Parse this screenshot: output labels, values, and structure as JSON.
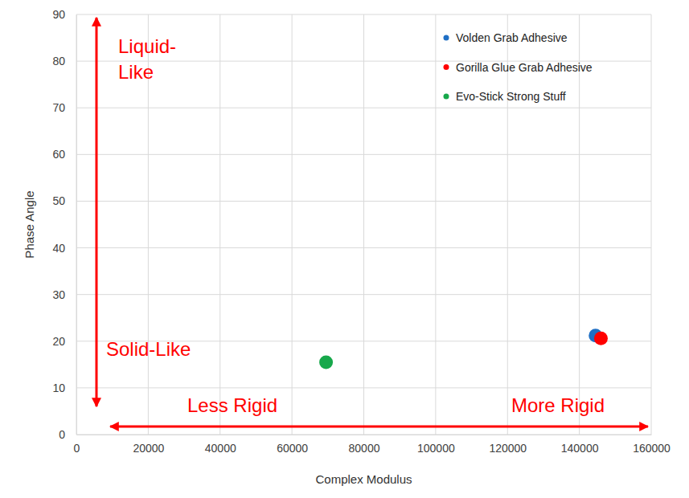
{
  "chart_data": {
    "type": "scatter",
    "x_label": "Complex Modulus",
    "y_label": "Phase Angle",
    "xlim": [
      0,
      160000
    ],
    "xticks": [
      0,
      20000,
      40000,
      60000,
      80000,
      100000,
      120000,
      140000,
      160000
    ],
    "ylim": [
      0,
      90
    ],
    "yticks": [
      0,
      10,
      20,
      30,
      40,
      50,
      60,
      70,
      80,
      90
    ],
    "grid": true,
    "legend": "upper right",
    "series": [
      {
        "name": "Volden Grab Adhesive",
        "color": "#1f6fc5",
        "x": [
          144500
        ],
        "values": [
          21.2
        ]
      },
      {
        "name": "Gorilla Glue Grab Adhesive",
        "color": "#ff0000",
        "x": [
          146000
        ],
        "values": [
          20.6
        ]
      },
      {
        "name": "Evo-Stick Strong Stuff",
        "color": "#17a84b",
        "x": [
          69500
        ],
        "values": [
          15.5
        ]
      }
    ],
    "annotations": [
      "Liquid-\nLike",
      "Solid-Like",
      "Less Rigid",
      "More Rigid"
    ]
  }
}
